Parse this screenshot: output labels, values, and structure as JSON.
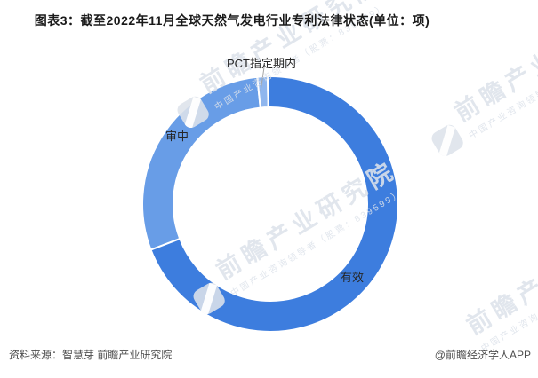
{
  "header": {
    "title": "图表3：截至2022年11月全球天然气发电行业专利法律状态(单位：项)"
  },
  "chart_data": {
    "type": "pie",
    "subtype": "donut",
    "title": "截至2022年11月全球天然气发电行业专利法律状态",
    "unit": "项",
    "legend_position": "none",
    "start_angle_deg": 249,
    "series": [
      {
        "name": "审中",
        "percent_estimate": 29.2,
        "color": "#689de7"
      },
      {
        "name": "PCT指定期内",
        "percent_estimate": 1.3,
        "color": "#8fb6ee"
      },
      {
        "name": "有效",
        "percent_estimate": 69.5,
        "color": "#3d7dde"
      }
    ]
  },
  "footer": {
    "source": "资料来源：智慧芽 前瞻产业研究院",
    "credit": "@前瞻经济学人APP"
  },
  "watermark": {
    "brand": "前瞻产业研究院",
    "subtitle": "中国产业咨询领导者（股票：839599）"
  }
}
